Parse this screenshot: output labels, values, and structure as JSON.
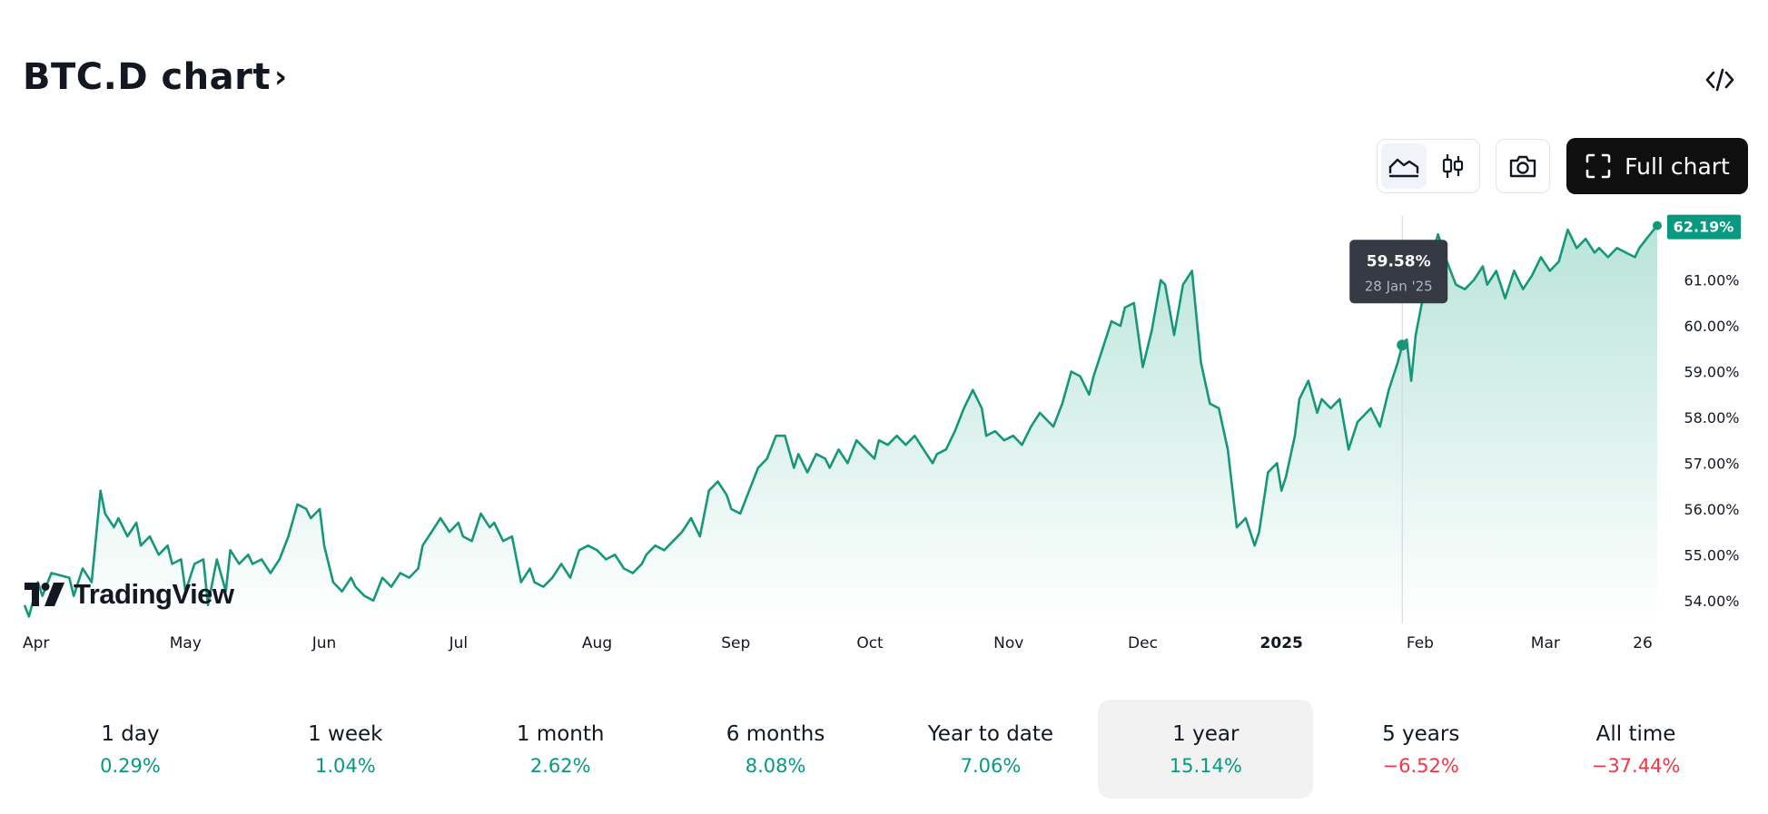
{
  "header": {
    "title": "BTC.D chart",
    "title_chevron": "›",
    "embed_icon": "code-icon",
    "full_chart_label": "Full chart"
  },
  "toolbar": {
    "area_icon": "area-chart-icon",
    "candle_icon": "candlestick-icon",
    "screenshot_icon": "camera-icon",
    "fullscreen_icon": "expand-icon"
  },
  "logo": {
    "text": "TradingView"
  },
  "colors": {
    "line": "#17977a",
    "fill_top": "#b9e4d9",
    "fill_bottom": "#ffffff",
    "positive": "#089981",
    "negative": "#f23645",
    "badge": "#089981",
    "tooltip_bg": "#363a45"
  },
  "chart_data": {
    "type": "area",
    "title": "",
    "xlabel": "",
    "ylabel": "",
    "x_range": [
      "2024-03-26",
      "2025-03-26"
    ],
    "ylim": [
      53.5,
      62.4
    ],
    "y_ticks": [
      "54.00%",
      "55.00%",
      "56.00%",
      "57.00%",
      "58.00%",
      "59.00%",
      "60.00%",
      "61.00%"
    ],
    "x_ticks": [
      {
        "date": "2024-04-01",
        "label": "Apr",
        "bold": false
      },
      {
        "date": "2024-05-01",
        "label": "May",
        "bold": false
      },
      {
        "date": "2024-06-01",
        "label": "Jun",
        "bold": false
      },
      {
        "date": "2024-07-01",
        "label": "Jul",
        "bold": false
      },
      {
        "date": "2024-08-01",
        "label": "Aug",
        "bold": false
      },
      {
        "date": "2024-09-01",
        "label": "Sep",
        "bold": false
      },
      {
        "date": "2024-10-01",
        "label": "Oct",
        "bold": false
      },
      {
        "date": "2024-11-01",
        "label": "Nov",
        "bold": false
      },
      {
        "date": "2024-12-01",
        "label": "Dec",
        "bold": false
      },
      {
        "date": "2025-01-01",
        "label": "2025",
        "bold": true
      },
      {
        "date": "2025-02-01",
        "label": "Feb",
        "bold": false
      },
      {
        "date": "2025-03-01",
        "label": "Mar",
        "bold": false
      },
      {
        "date": "2025-03-26",
        "label": "26",
        "bold": false
      }
    ],
    "series": [
      {
        "values": [
          [
            "2024-03-26",
            53.9
          ],
          [
            "2024-03-27",
            53.65
          ],
          [
            "2024-03-29",
            54.4
          ],
          [
            "2024-03-30",
            54.1
          ],
          [
            "2024-04-01",
            54.6
          ],
          [
            "2024-04-03",
            54.55
          ],
          [
            "2024-04-05",
            54.5
          ],
          [
            "2024-04-06",
            54.1
          ],
          [
            "2024-04-08",
            54.7
          ],
          [
            "2024-04-10",
            54.4
          ],
          [
            "2024-04-12",
            56.4
          ],
          [
            "2024-04-13",
            55.9
          ],
          [
            "2024-04-15",
            55.6
          ],
          [
            "2024-04-16",
            55.8
          ],
          [
            "2024-04-18",
            55.4
          ],
          [
            "2024-04-20",
            55.7
          ],
          [
            "2024-04-21",
            55.2
          ],
          [
            "2024-04-23",
            55.4
          ],
          [
            "2024-04-25",
            55.0
          ],
          [
            "2024-04-27",
            55.2
          ],
          [
            "2024-04-28",
            54.8
          ],
          [
            "2024-04-30",
            54.9
          ],
          [
            "2024-05-01",
            54.2
          ],
          [
            "2024-05-03",
            54.8
          ],
          [
            "2024-05-05",
            54.9
          ],
          [
            "2024-05-06",
            53.9
          ],
          [
            "2024-05-08",
            54.9
          ],
          [
            "2024-05-10",
            54.2
          ],
          [
            "2024-05-11",
            55.1
          ],
          [
            "2024-05-13",
            54.8
          ],
          [
            "2024-05-15",
            55.0
          ],
          [
            "2024-05-16",
            54.8
          ],
          [
            "2024-05-18",
            54.9
          ],
          [
            "2024-05-20",
            54.6
          ],
          [
            "2024-05-22",
            54.9
          ],
          [
            "2024-05-24",
            55.4
          ],
          [
            "2024-05-26",
            56.1
          ],
          [
            "2024-05-28",
            56.0
          ],
          [
            "2024-05-29",
            55.8
          ],
          [
            "2024-05-31",
            56.0
          ],
          [
            "2024-06-01",
            55.2
          ],
          [
            "2024-06-03",
            54.4
          ],
          [
            "2024-06-05",
            54.2
          ],
          [
            "2024-06-07",
            54.5
          ],
          [
            "2024-06-08",
            54.3
          ],
          [
            "2024-06-10",
            54.1
          ],
          [
            "2024-06-12",
            54.0
          ],
          [
            "2024-06-14",
            54.5
          ],
          [
            "2024-06-16",
            54.3
          ],
          [
            "2024-06-18",
            54.6
          ],
          [
            "2024-06-20",
            54.5
          ],
          [
            "2024-06-22",
            54.7
          ],
          [
            "2024-06-23",
            55.2
          ],
          [
            "2024-06-25",
            55.5
          ],
          [
            "2024-06-27",
            55.8
          ],
          [
            "2024-06-29",
            55.5
          ],
          [
            "2024-07-01",
            55.7
          ],
          [
            "2024-07-02",
            55.4
          ],
          [
            "2024-07-04",
            55.3
          ],
          [
            "2024-07-06",
            55.9
          ],
          [
            "2024-07-08",
            55.6
          ],
          [
            "2024-07-09",
            55.7
          ],
          [
            "2024-07-11",
            55.3
          ],
          [
            "2024-07-13",
            55.4
          ],
          [
            "2024-07-15",
            54.4
          ],
          [
            "2024-07-17",
            54.7
          ],
          [
            "2024-07-18",
            54.4
          ],
          [
            "2024-07-20",
            54.3
          ],
          [
            "2024-07-22",
            54.5
          ],
          [
            "2024-07-24",
            54.8
          ],
          [
            "2024-07-26",
            54.5
          ],
          [
            "2024-07-28",
            55.1
          ],
          [
            "2024-07-30",
            55.2
          ],
          [
            "2024-08-01",
            55.1
          ],
          [
            "2024-08-03",
            54.9
          ],
          [
            "2024-08-05",
            55.0
          ],
          [
            "2024-08-07",
            54.7
          ],
          [
            "2024-08-09",
            54.6
          ],
          [
            "2024-08-11",
            54.8
          ],
          [
            "2024-08-12",
            55.0
          ],
          [
            "2024-08-14",
            55.2
          ],
          [
            "2024-08-16",
            55.1
          ],
          [
            "2024-08-18",
            55.3
          ],
          [
            "2024-08-20",
            55.5
          ],
          [
            "2024-08-22",
            55.8
          ],
          [
            "2024-08-24",
            55.4
          ],
          [
            "2024-08-26",
            56.4
          ],
          [
            "2024-08-28",
            56.6
          ],
          [
            "2024-08-30",
            56.3
          ],
          [
            "2024-08-31",
            56.0
          ],
          [
            "2024-09-02",
            55.9
          ],
          [
            "2024-09-04",
            56.4
          ],
          [
            "2024-09-06",
            56.9
          ],
          [
            "2024-09-08",
            57.1
          ],
          [
            "2024-09-10",
            57.6
          ],
          [
            "2024-09-12",
            57.6
          ],
          [
            "2024-09-14",
            56.9
          ],
          [
            "2024-09-15",
            57.2
          ],
          [
            "2024-09-17",
            56.8
          ],
          [
            "2024-09-19",
            57.2
          ],
          [
            "2024-09-21",
            57.1
          ],
          [
            "2024-09-22",
            56.9
          ],
          [
            "2024-09-24",
            57.3
          ],
          [
            "2024-09-26",
            57.0
          ],
          [
            "2024-09-28",
            57.5
          ],
          [
            "2024-09-30",
            57.3
          ],
          [
            "2024-10-02",
            57.1
          ],
          [
            "2024-10-03",
            57.5
          ],
          [
            "2024-10-05",
            57.4
          ],
          [
            "2024-10-07",
            57.6
          ],
          [
            "2024-10-09",
            57.4
          ],
          [
            "2024-10-11",
            57.6
          ],
          [
            "2024-10-13",
            57.3
          ],
          [
            "2024-10-15",
            57.0
          ],
          [
            "2024-10-16",
            57.2
          ],
          [
            "2024-10-18",
            57.3
          ],
          [
            "2024-10-20",
            57.7
          ],
          [
            "2024-10-22",
            58.2
          ],
          [
            "2024-10-24",
            58.6
          ],
          [
            "2024-10-26",
            58.2
          ],
          [
            "2024-10-27",
            57.6
          ],
          [
            "2024-10-29",
            57.7
          ],
          [
            "2024-10-31",
            57.5
          ],
          [
            "2024-11-02",
            57.6
          ],
          [
            "2024-11-04",
            57.4
          ],
          [
            "2024-11-06",
            57.8
          ],
          [
            "2024-11-08",
            58.1
          ],
          [
            "2024-11-09",
            58.0
          ],
          [
            "2024-11-11",
            57.8
          ],
          [
            "2024-11-13",
            58.3
          ],
          [
            "2024-11-15",
            59.0
          ],
          [
            "2024-11-17",
            58.9
          ],
          [
            "2024-11-19",
            58.5
          ],
          [
            "2024-11-20",
            58.9
          ],
          [
            "2024-11-22",
            59.5
          ],
          [
            "2024-11-24",
            60.1
          ],
          [
            "2024-11-26",
            60.0
          ],
          [
            "2024-11-27",
            60.4
          ],
          [
            "2024-11-29",
            60.5
          ],
          [
            "2024-12-01",
            59.1
          ],
          [
            "2024-12-03",
            59.9
          ],
          [
            "2024-12-05",
            61.0
          ],
          [
            "2024-12-06",
            60.9
          ],
          [
            "2024-12-08",
            59.8
          ],
          [
            "2024-12-10",
            60.9
          ],
          [
            "2024-12-12",
            61.2
          ],
          [
            "2024-12-14",
            59.2
          ],
          [
            "2024-12-16",
            58.3
          ],
          [
            "2024-12-18",
            58.2
          ],
          [
            "2024-12-20",
            57.3
          ],
          [
            "2024-12-22",
            55.6
          ],
          [
            "2024-12-24",
            55.8
          ],
          [
            "2024-12-26",
            55.2
          ],
          [
            "2024-12-27",
            55.5
          ],
          [
            "2024-12-29",
            56.8
          ],
          [
            "2024-12-31",
            57.0
          ],
          [
            "2025-01-01",
            56.4
          ],
          [
            "2025-01-02",
            56.7
          ],
          [
            "2025-01-04",
            57.6
          ],
          [
            "2025-01-05",
            58.4
          ],
          [
            "2025-01-07",
            58.8
          ],
          [
            "2025-01-09",
            58.1
          ],
          [
            "2025-01-10",
            58.4
          ],
          [
            "2025-01-12",
            58.2
          ],
          [
            "2025-01-14",
            58.4
          ],
          [
            "2025-01-16",
            57.3
          ],
          [
            "2025-01-18",
            57.9
          ],
          [
            "2025-01-20",
            58.1
          ],
          [
            "2025-01-21",
            58.2
          ],
          [
            "2025-01-23",
            57.8
          ],
          [
            "2025-01-25",
            58.6
          ],
          [
            "2025-01-27",
            59.2
          ],
          [
            "2025-01-28",
            59.58
          ],
          [
            "2025-01-29",
            59.7
          ],
          [
            "2025-01-30",
            58.8
          ],
          [
            "2025-01-31",
            59.8
          ],
          [
            "2025-02-02",
            60.8
          ],
          [
            "2025-02-03",
            61.3
          ],
          [
            "2025-02-05",
            62.0
          ],
          [
            "2025-02-07",
            61.4
          ],
          [
            "2025-02-09",
            60.9
          ],
          [
            "2025-02-11",
            60.8
          ],
          [
            "2025-02-13",
            61.0
          ],
          [
            "2025-02-15",
            61.3
          ],
          [
            "2025-02-16",
            60.9
          ],
          [
            "2025-02-18",
            61.2
          ],
          [
            "2025-02-20",
            60.6
          ],
          [
            "2025-02-22",
            61.2
          ],
          [
            "2025-02-24",
            60.8
          ],
          [
            "2025-02-26",
            61.1
          ],
          [
            "2025-02-28",
            61.5
          ],
          [
            "2025-03-02",
            61.2
          ],
          [
            "2025-03-04",
            61.4
          ],
          [
            "2025-03-06",
            62.1
          ],
          [
            "2025-03-08",
            61.7
          ],
          [
            "2025-03-10",
            61.9
          ],
          [
            "2025-03-12",
            61.6
          ],
          [
            "2025-03-13",
            61.7
          ],
          [
            "2025-03-15",
            61.5
          ],
          [
            "2025-03-17",
            61.7
          ],
          [
            "2025-03-19",
            61.6
          ],
          [
            "2025-03-21",
            61.5
          ],
          [
            "2025-03-22",
            61.7
          ],
          [
            "2025-03-24",
            61.95
          ],
          [
            "2025-03-26",
            62.19
          ]
        ]
      }
    ],
    "last_value_label": "62.19%",
    "tooltip": {
      "date": "2025-01-28",
      "value": 59.58,
      "value_label": "59.58%",
      "date_label": "28 Jan '25"
    }
  },
  "periods": [
    {
      "label": "1 day",
      "change": "0.29%",
      "positive": true,
      "active": false
    },
    {
      "label": "1 week",
      "change": "1.04%",
      "positive": true,
      "active": false
    },
    {
      "label": "1 month",
      "change": "2.62%",
      "positive": true,
      "active": false
    },
    {
      "label": "6 months",
      "change": "8.08%",
      "positive": true,
      "active": false
    },
    {
      "label": "Year to date",
      "change": "7.06%",
      "positive": true,
      "active": false
    },
    {
      "label": "1 year",
      "change": "15.14%",
      "positive": true,
      "active": true
    },
    {
      "label": "5 years",
      "change": "−6.52%",
      "positive": false,
      "active": false
    },
    {
      "label": "All time",
      "change": "−37.44%",
      "positive": false,
      "active": false
    }
  ]
}
